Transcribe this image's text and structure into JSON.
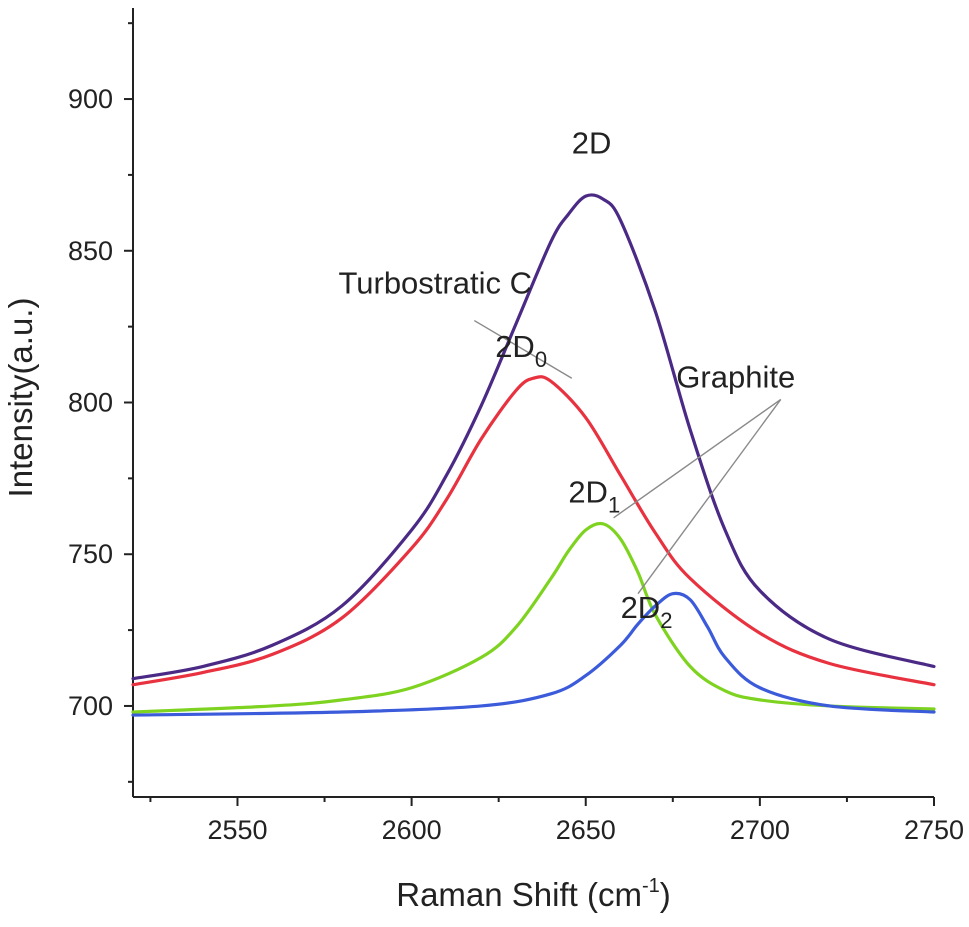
{
  "chart_data": {
    "type": "line",
    "title": "",
    "xlabel": "Raman Shift (cm",
    "xlabel_sup": "-1",
    "xlabel_close": ")",
    "ylabel": "Intensity(a.u.)",
    "xlim": [
      2520,
      2750
    ],
    "ylim": [
      670,
      930
    ],
    "x_ticks": [
      2550,
      2600,
      2650,
      2700,
      2750
    ],
    "y_ticks": [
      700,
      750,
      800,
      850,
      900
    ],
    "grid": false,
    "series": [
      {
        "name": "2D",
        "color": "#4b2a86",
        "x": [
          2520,
          2540,
          2560,
          2580,
          2600,
          2610,
          2620,
          2630,
          2640,
          2645,
          2650,
          2655,
          2660,
          2670,
          2680,
          2690,
          2700,
          2720,
          2750
        ],
        "y": [
          709,
          713,
          720,
          733,
          758,
          776,
          799,
          826,
          853,
          862,
          868,
          867,
          860,
          830,
          791,
          758,
          738,
          722,
          713
        ]
      },
      {
        "name": "2D",
        "name_sub": "0",
        "color": "#e8323f",
        "x": [
          2520,
          2540,
          2560,
          2580,
          2600,
          2610,
          2620,
          2630,
          2635,
          2640,
          2650,
          2660,
          2670,
          2680,
          2700,
          2720,
          2750
        ],
        "y": [
          707,
          711,
          717,
          729,
          752,
          768,
          788,
          804,
          808,
          807,
          795,
          776,
          757,
          742,
          724,
          714,
          707
        ]
      },
      {
        "name": "2D",
        "name_sub": "1",
        "color": "#7ed321",
        "x": [
          2520,
          2560,
          2580,
          2600,
          2620,
          2630,
          2640,
          2645,
          2650,
          2655,
          2660,
          2665,
          2670,
          2680,
          2690,
          2700,
          2720,
          2750
        ],
        "y": [
          698,
          700,
          702,
          706,
          716,
          726,
          742,
          751,
          758,
          760,
          755,
          744,
          730,
          713,
          705,
          702,
          700,
          699
        ]
      },
      {
        "name": "2D",
        "name_sub": "2",
        "color": "#3b5bdb",
        "x": [
          2520,
          2580,
          2620,
          2640,
          2650,
          2660,
          2665,
          2670,
          2675,
          2680,
          2685,
          2690,
          2700,
          2720,
          2750
        ],
        "y": [
          697,
          698,
          700,
          704,
          710,
          720,
          727,
          733,
          737,
          735,
          726,
          716,
          706,
          700,
          698
        ]
      }
    ],
    "annotations": [
      {
        "text": "2D",
        "sub": "",
        "x": 2646,
        "y": 882
      },
      {
        "text": "2D",
        "sub": "0",
        "x": 2624,
        "y": 815
      },
      {
        "text": "2D",
        "sub": "1",
        "x": 2645,
        "y": 767
      },
      {
        "text": "2D",
        "sub": "2",
        "x": 2660,
        "y": 729
      },
      {
        "text": "Turbostratic C",
        "sub": "",
        "x": 2579,
        "y": 836
      },
      {
        "text": "Graphite",
        "sub": "",
        "x": 2676,
        "y": 805
      }
    ],
    "leader_lines": [
      {
        "from": [
          2618,
          827
        ],
        "to": [
          2646,
          808
        ]
      },
      {
        "from": [
          2706,
          801
        ],
        "to": [
          2658,
          762
        ]
      },
      {
        "from": [
          2706,
          801
        ],
        "to": [
          2665,
          737
        ]
      }
    ]
  }
}
